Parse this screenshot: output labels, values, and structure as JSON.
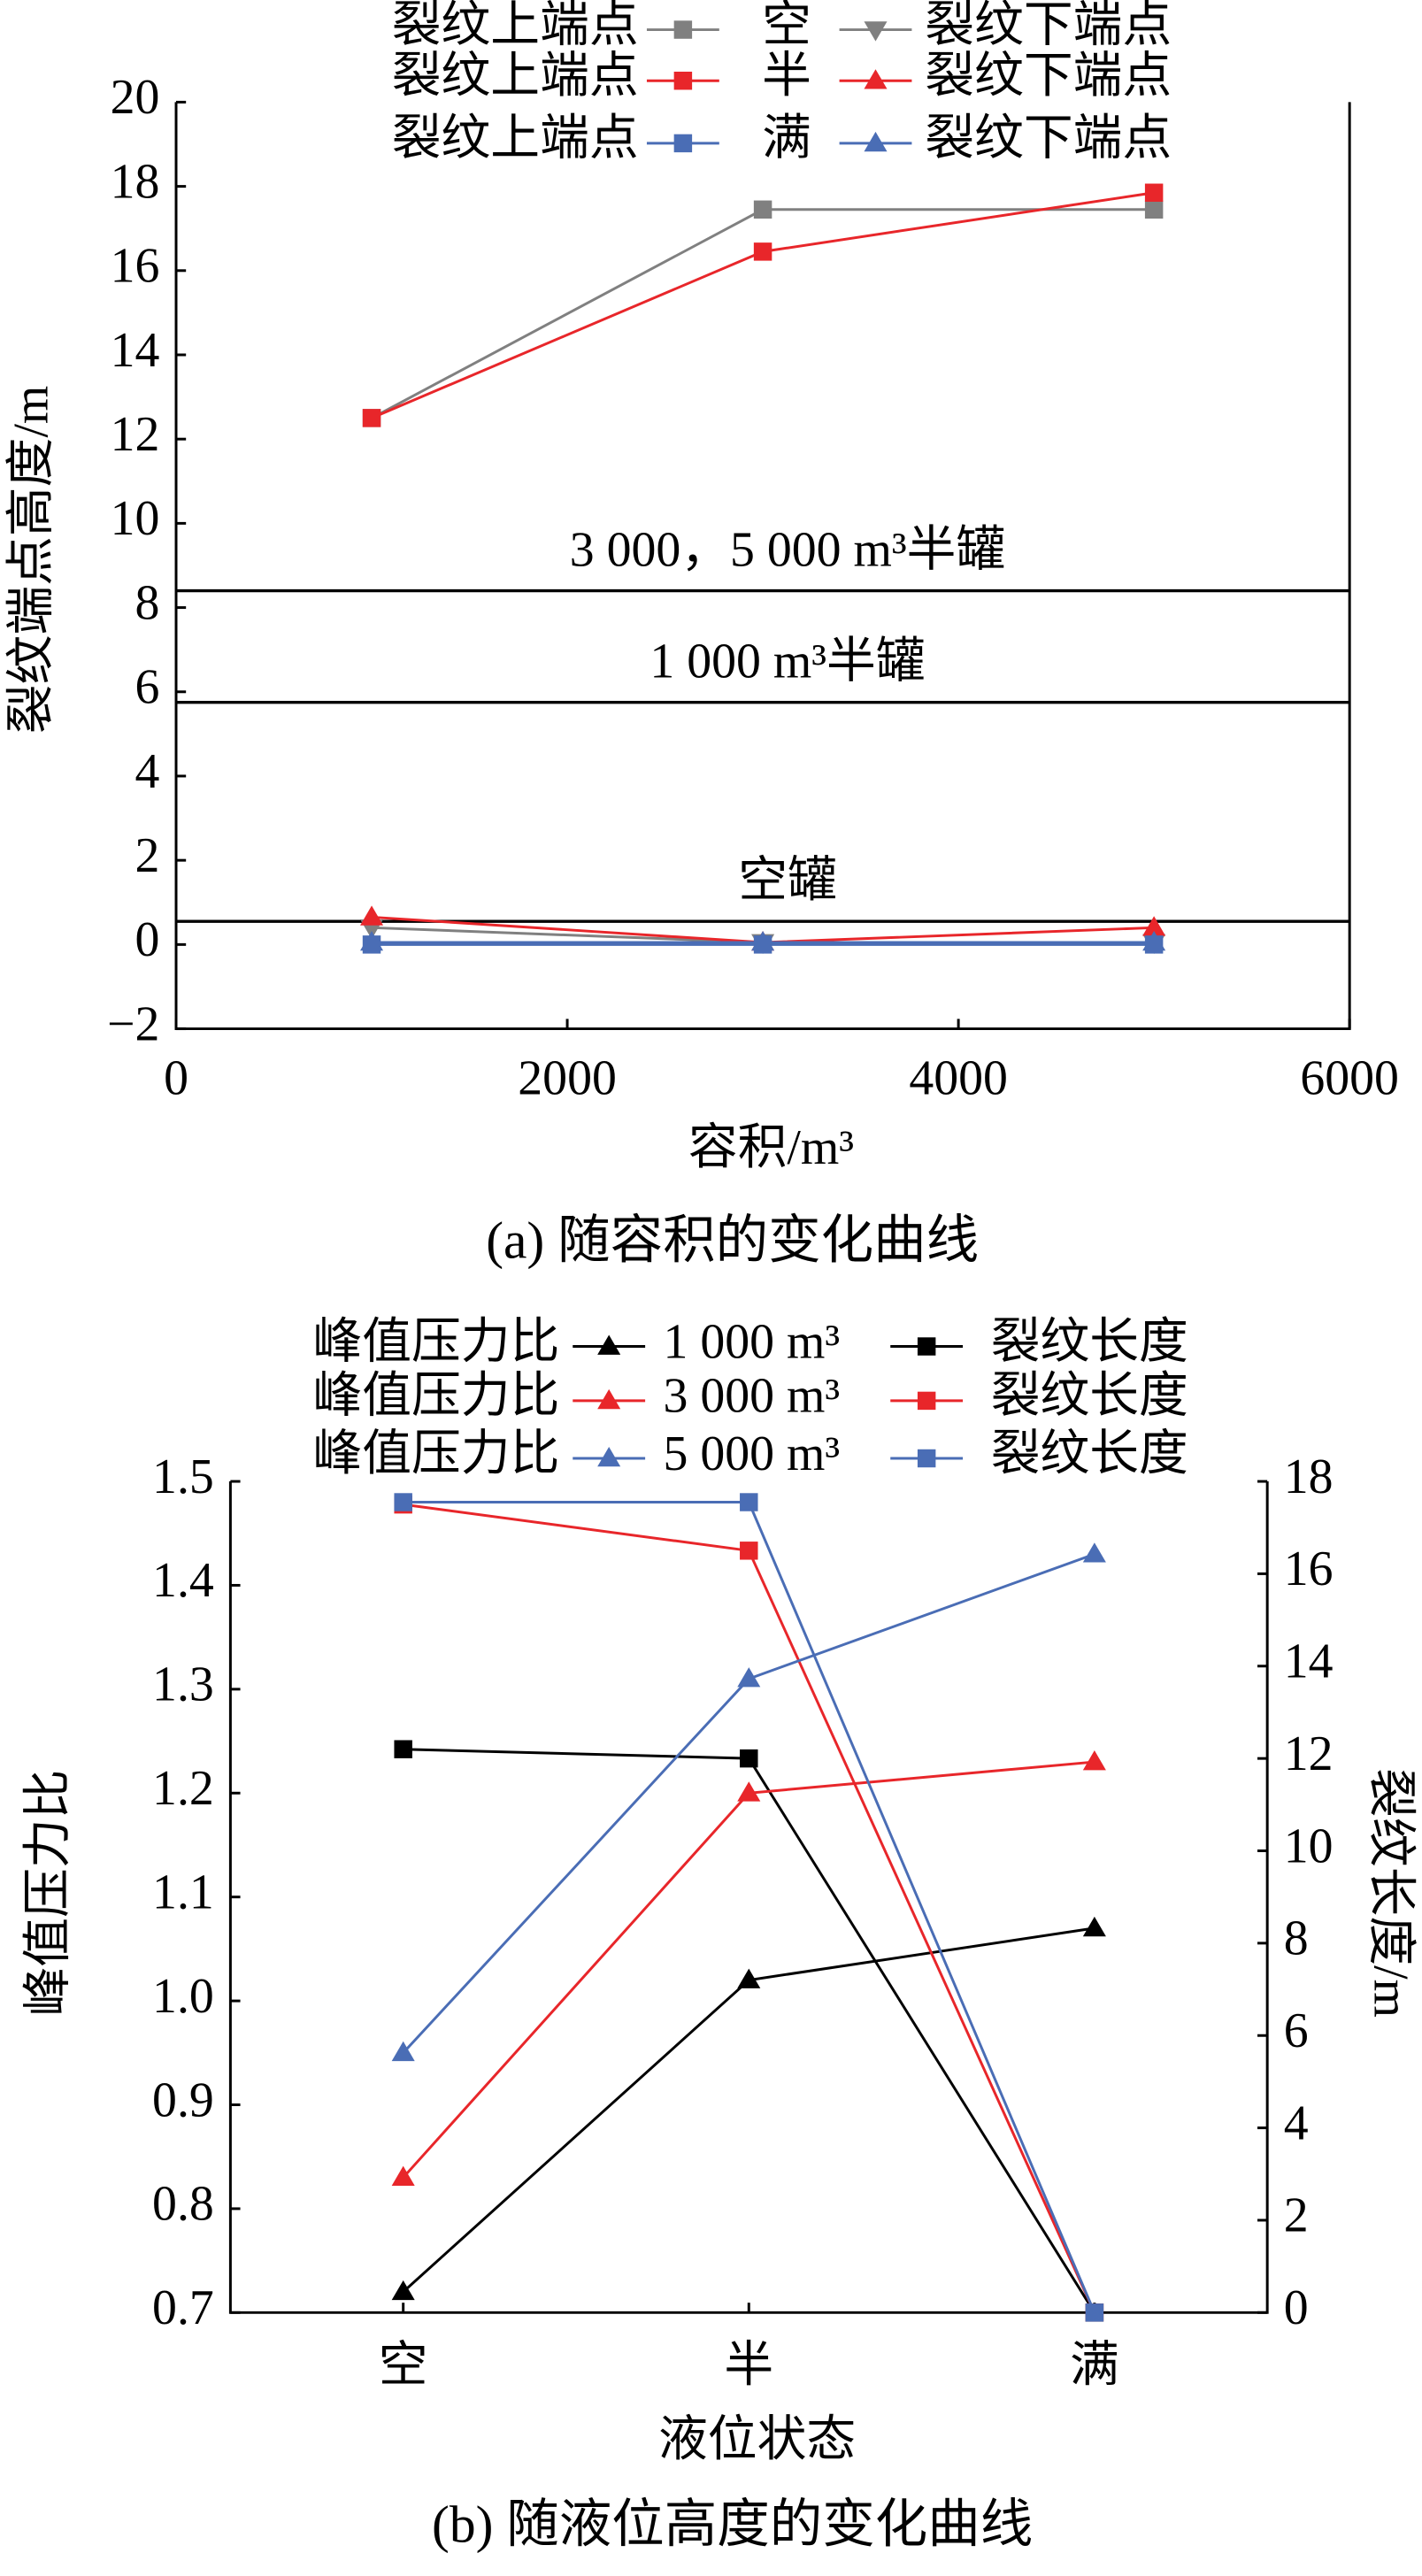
{
  "chart_data": [
    {
      "type": "line",
      "caption": "(a)  随容积的变化曲线",
      "xlabel": "容积/m³",
      "ylabel": "裂纹端点高度/m",
      "x": [
        1000,
        3000,
        5000
      ],
      "xlim": [
        0,
        6000
      ],
      "xticks": [
        0,
        2000,
        4000,
        6000
      ],
      "ylim": [
        -2,
        20
      ],
      "yticks": [
        {
          "value": -2,
          "label": "−2"
        },
        0,
        2,
        4,
        6,
        8,
        10,
        12,
        14,
        16,
        18,
        20
      ],
      "hlines": [
        {
          "value": 8.4,
          "label": "3 000，5 000 m³半罐"
        },
        {
          "value": 5.75,
          "label": "1 000 m³半罐"
        },
        {
          "value": 0.55,
          "label": "空罐"
        }
      ],
      "groups": [
        {
          "label": "空",
          "series": [
            {
              "name": "裂纹上端点",
              "color": "#808080",
              "marker": "square",
              "values": [
                12.5,
                17.45,
                17.45
              ]
            },
            {
              "name": "裂纹下端点",
              "color": "#808080",
              "marker": "triangle-down",
              "values": [
                0.4,
                0.05,
                0.05
              ]
            }
          ]
        },
        {
          "label": "半",
          "series": [
            {
              "name": "裂纹上端点",
              "color": "#e8262a",
              "marker": "square",
              "values": [
                12.5,
                16.45,
                17.85
              ]
            },
            {
              "name": "裂纹下端点",
              "color": "#e8262a",
              "marker": "triangle-up",
              "values": [
                0.65,
                0.05,
                0.4
              ]
            }
          ]
        },
        {
          "label": "满",
          "series": [
            {
              "name": "裂纹上端点",
              "color": "#4a6db5",
              "marker": "square",
              "values": [
                0,
                0,
                0
              ]
            },
            {
              "name": "裂纹下端点",
              "color": "#4a6db5",
              "marker": "triangle-up",
              "values": [
                0.05,
                0.05,
                0.05
              ]
            }
          ]
        }
      ]
    },
    {
      "type": "line",
      "caption": "(b)  随液位高度的变化曲线",
      "xlabel": "液位状态",
      "ylabel": "峰值压力比",
      "y2label": "裂纹长度/m",
      "categories": [
        "空",
        "半",
        "满"
      ],
      "ylim": [
        0.7,
        1.5
      ],
      "yticks": [
        0.7,
        0.8,
        0.9,
        {
          "value": 1,
          "label": "1.0"
        },
        1.1,
        1.2,
        1.3,
        1.4,
        1.5
      ],
      "y2lim": [
        0,
        18
      ],
      "y2ticks": [
        0,
        2,
        4,
        6,
        8,
        10,
        12,
        14,
        16,
        18
      ],
      "groups": [
        {
          "label": "1 000 m³",
          "series": [
            {
              "name": "峰值压力比",
              "color": "#000000",
              "marker": "triangle-up",
              "values": [
                0.72,
                1.02,
                1.07
              ]
            },
            {
              "name": "裂纹长度",
              "color": "#000000",
              "marker": "square",
              "axis": "y2",
              "values": [
                12.2,
                12.0,
                0
              ]
            }
          ]
        },
        {
          "label": "3 000 m³",
          "series": [
            {
              "name": "峰值压力比",
              "color": "#e8262a",
              "marker": "triangle-up",
              "values": [
                0.83,
                1.2,
                1.23
              ]
            },
            {
              "name": "裂纹长度",
              "color": "#e8262a",
              "marker": "square",
              "axis": "y2",
              "values": [
                17.5,
                16.5,
                0
              ]
            }
          ]
        },
        {
          "label": "5 000 m³",
          "series": [
            {
              "name": "峰值压力比",
              "color": "#4a6db5",
              "marker": "triangle-up",
              "values": [
                0.95,
                1.31,
                1.43
              ]
            },
            {
              "name": "裂纹长度",
              "color": "#4a6db5",
              "marker": "square",
              "axis": "y2",
              "values": [
                17.55,
                17.55,
                0
              ]
            }
          ]
        }
      ]
    }
  ]
}
